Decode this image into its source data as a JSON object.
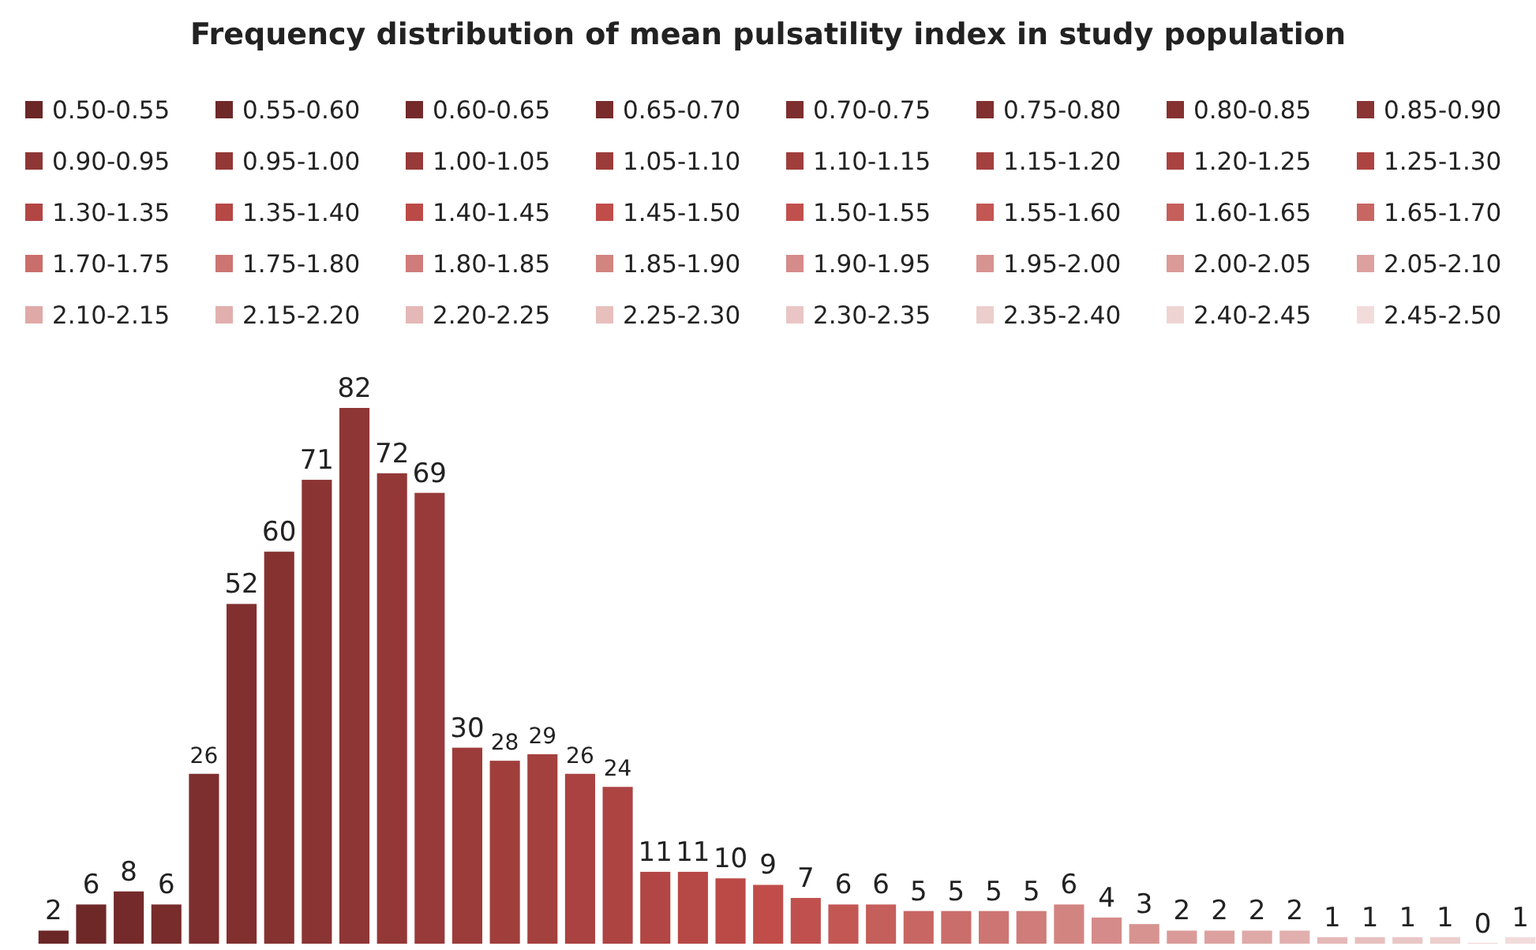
{
  "chart_data": {
    "type": "bar",
    "title": "Frequency distribution of mean pulsatility index in study population",
    "categories": [
      null
    ],
    "series": [
      {
        "name": "0.50-0.55",
        "color": "#6b2626",
        "values": [
          2
        ]
      },
      {
        "name": "0.55-0.60",
        "color": "#6f2828",
        "values": [
          6
        ]
      },
      {
        "name": "0.60-0.65",
        "color": "#742a2a",
        "values": [
          8
        ]
      },
      {
        "name": "0.65-0.70",
        "color": "#782c2c",
        "values": [
          6
        ]
      },
      {
        "name": "0.70-0.75",
        "color": "#7d2e2e",
        "values": [
          26
        ]
      },
      {
        "name": "0.75-0.80",
        "color": "#81302f",
        "values": [
          52
        ]
      },
      {
        "name": "0.80-0.85",
        "color": "#853231",
        "values": [
          60
        ]
      },
      {
        "name": "0.85-0.90",
        "color": "#8a3433",
        "values": [
          71
        ]
      },
      {
        "name": "0.90-0.95",
        "color": "#8e3635",
        "values": [
          82
        ]
      },
      {
        "name": "0.95-1.00",
        "color": "#933837",
        "values": [
          72
        ]
      },
      {
        "name": "1.00-1.05",
        "color": "#973a39",
        "values": [
          69
        ]
      },
      {
        "name": "1.05-1.10",
        "color": "#9c3c3a",
        "values": [
          30
        ]
      },
      {
        "name": "1.10-1.15",
        "color": "#a03e3c",
        "values": [
          28
        ]
      },
      {
        "name": "1.15-1.20",
        "color": "#a4403e",
        "values": [
          29
        ]
      },
      {
        "name": "1.20-1.25",
        "color": "#a94240",
        "values": [
          26
        ]
      },
      {
        "name": "1.25-1.30",
        "color": "#ad4442",
        "values": [
          24
        ]
      },
      {
        "name": "1.30-1.35",
        "color": "#b24644",
        "values": [
          11
        ]
      },
      {
        "name": "1.35-1.40",
        "color": "#b64845",
        "values": [
          11
        ]
      },
      {
        "name": "1.40-1.45",
        "color": "#bb4a47",
        "values": [
          10
        ]
      },
      {
        "name": "1.45-1.50",
        "color": "#c04d4a",
        "values": [
          9
        ]
      },
      {
        "name": "1.50-1.55",
        "color": "#c0504d",
        "values": [
          7
        ]
      },
      {
        "name": "1.55-1.60",
        "color": "#c35754",
        "values": [
          6
        ]
      },
      {
        "name": "1.60-1.65",
        "color": "#c55f5c",
        "values": [
          6
        ]
      },
      {
        "name": "1.65-1.70",
        "color": "#c86663",
        "values": [
          5
        ]
      },
      {
        "name": "1.70-1.75",
        "color": "#ca6e6b",
        "values": [
          5
        ]
      },
      {
        "name": "1.75-1.80",
        "color": "#cd7572",
        "values": [
          5
        ]
      },
      {
        "name": "1.80-1.85",
        "color": "#cf7c7a",
        "values": [
          5
        ]
      },
      {
        "name": "1.85-1.90",
        "color": "#d28481",
        "values": [
          6
        ]
      },
      {
        "name": "1.90-1.95",
        "color": "#d58b89",
        "values": [
          4
        ]
      },
      {
        "name": "1.95-2.00",
        "color": "#d79390",
        "values": [
          3
        ]
      },
      {
        "name": "2.00-2.05",
        "color": "#da9a98",
        "values": [
          2
        ]
      },
      {
        "name": "2.05-2.10",
        "color": "#dca19f",
        "values": [
          2
        ]
      },
      {
        "name": "2.10-2.15",
        "color": "#dfa9a7",
        "values": [
          2
        ]
      },
      {
        "name": "2.15-2.20",
        "color": "#e1b0ae",
        "values": [
          2
        ]
      },
      {
        "name": "2.20-2.25",
        "color": "#e4b8b6",
        "values": [
          1
        ]
      },
      {
        "name": "2.25-2.30",
        "color": "#e7bfbd",
        "values": [
          1
        ]
      },
      {
        "name": "2.30-2.35",
        "color": "#e9c6c5",
        "values": [
          1
        ]
      },
      {
        "name": "2.35-2.40",
        "color": "#eccecc",
        "values": [
          1
        ]
      },
      {
        "name": "2.40-2.45",
        "color": "#eed5d4",
        "values": [
          0
        ]
      },
      {
        "name": "2.45-2.50",
        "color": "#f2dcdb",
        "values": [
          1
        ]
      }
    ],
    "data_labels": true,
    "legend": "top"
  }
}
